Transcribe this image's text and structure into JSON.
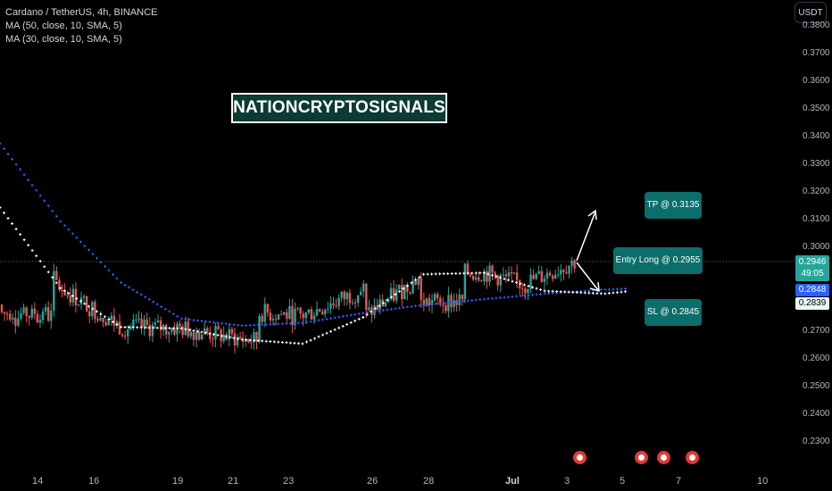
{
  "legend": {
    "symbol": "Cardano / TetherUS, 4h, BINANCE",
    "ma1": "MA (50, close, 10, SMA, 5)",
    "ma2": "MA (30, close, 10, SMA, 5)"
  },
  "currency": "USDT",
  "watermark": "NATIONCRYPTOSIGNALS",
  "y_axis": [
    "0.3800",
    "0.3700",
    "0.3600",
    "0.3500",
    "0.3400",
    "0.3300",
    "0.3200",
    "0.3100",
    "0.3000",
    "0.2700",
    "0.2600",
    "0.2500",
    "0.2400",
    "0.2300"
  ],
  "price_tags": {
    "last_price": "0.2946",
    "countdown": "49:05",
    "ma_blue": "0.2848",
    "ma_white": "0.2839"
  },
  "x_axis": [
    "14",
    "16",
    "19",
    "21",
    "23",
    "26",
    "28",
    "Jul",
    "3",
    "5",
    "7",
    "10"
  ],
  "callouts": {
    "tp": "TP @ 0.3135",
    "entry": "Entry Long @ 0.2955",
    "sl": "SL @ 0.2845"
  },
  "colors": {
    "up": "#26a69a",
    "down": "#ef5350",
    "ma_blue": "#2962ff",
    "ma_white": "#ffffff",
    "background": "#000000",
    "callout": "#0b6e6a"
  },
  "chart_data": {
    "type": "line",
    "title": "Cardano / TetherUS, 4h, BINANCE",
    "ylim": [
      0.225,
      0.385
    ],
    "series": [
      {
        "name": "MA (50, close, 10, SMA, 5)",
        "x": [
          0,
          5,
          10,
          15,
          20,
          25,
          30,
          35,
          40,
          45,
          50,
          52
        ],
        "values": [
          0.337,
          0.309,
          0.287,
          0.274,
          0.2715,
          0.2725,
          0.276,
          0.279,
          0.281,
          0.283,
          0.2845,
          0.2848
        ]
      },
      {
        "name": "MA (30, close, 10, SMA, 5)",
        "x": [
          0,
          5,
          10,
          15,
          20,
          25,
          30,
          35,
          40,
          45,
          50,
          52
        ],
        "values": [
          0.314,
          0.285,
          0.271,
          0.2705,
          0.2665,
          0.265,
          0.2745,
          0.29,
          0.2905,
          0.284,
          0.283,
          0.2839
        ]
      }
    ],
    "trade": {
      "tp": 0.3135,
      "entry": 0.2955,
      "sl": 0.2845,
      "last": 0.2946
    }
  }
}
